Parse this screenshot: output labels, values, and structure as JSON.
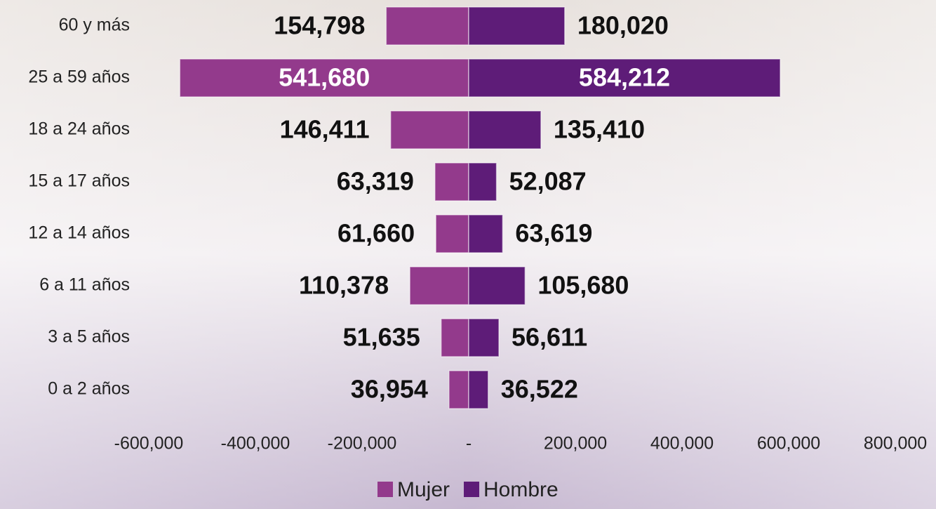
{
  "chart_data": {
    "type": "bar",
    "orientation": "horizontal",
    "categories": [
      "60 y más",
      "25 a 59 años",
      "18 a 24 años",
      "15 a 17 años",
      "12 a 14 años",
      "6 a 11 años",
      "3 a 5 años",
      "0 a 2 años"
    ],
    "series": [
      {
        "name": "Mujer",
        "color": "#933a8c",
        "values": [
          -154798,
          -541680,
          -146411,
          -63319,
          -61660,
          -110378,
          -51635,
          -36954
        ],
        "value_labels": [
          "154,798",
          "541,680",
          "146,411",
          "63,319",
          "61,660",
          "110,378",
          "51,635",
          "36,954"
        ]
      },
      {
        "name": "Hombre",
        "color": "#5e1c78",
        "values": [
          180020,
          584212,
          135410,
          52087,
          63619,
          105680,
          56611,
          36522
        ],
        "value_labels": [
          "180,020",
          "584,212",
          "135,410",
          "52,087",
          "63,619",
          "105,680",
          "56,611",
          "36,522"
        ]
      }
    ],
    "xlim": [
      -600000,
      800000
    ],
    "xticks": [
      {
        "value": -600000,
        "label": "-600,000"
      },
      {
        "value": -400000,
        "label": "-400,000"
      },
      {
        "value": -200000,
        "label": "-200,000"
      },
      {
        "value": 0,
        "label": "-"
      },
      {
        "value": 200000,
        "label": "200,000"
      },
      {
        "value": 400000,
        "label": "400,000"
      },
      {
        "value": 600000,
        "label": "600,000"
      },
      {
        "value": 800000,
        "label": "800,000"
      }
    ],
    "legend": "bottom"
  }
}
